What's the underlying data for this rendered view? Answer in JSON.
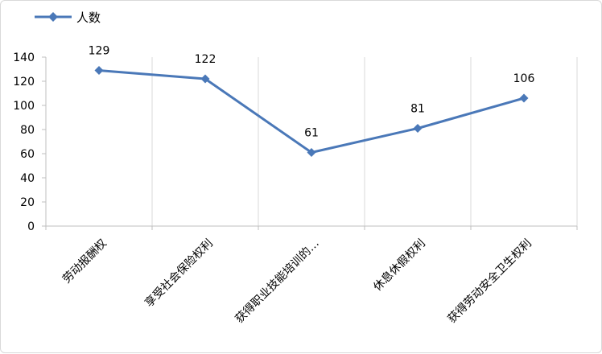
{
  "chart_data": {
    "type": "line",
    "categories": [
      "劳动报酬权",
      "享受社会保险权利",
      "获得职业技能培训的…",
      "休息休假权利",
      "获得劳动安全卫生权利"
    ],
    "series": [
      {
        "name": "人数",
        "values": [
          129,
          122,
          61,
          81,
          106
        ],
        "color": "#4a78b8"
      }
    ],
    "ylim": [
      0,
      140
    ],
    "yticks": [
      0,
      20,
      40,
      60,
      80,
      100,
      120,
      140
    ],
    "grid": "vertical",
    "legend": "top-left",
    "data_labels": true,
    "marker": "diamond"
  }
}
